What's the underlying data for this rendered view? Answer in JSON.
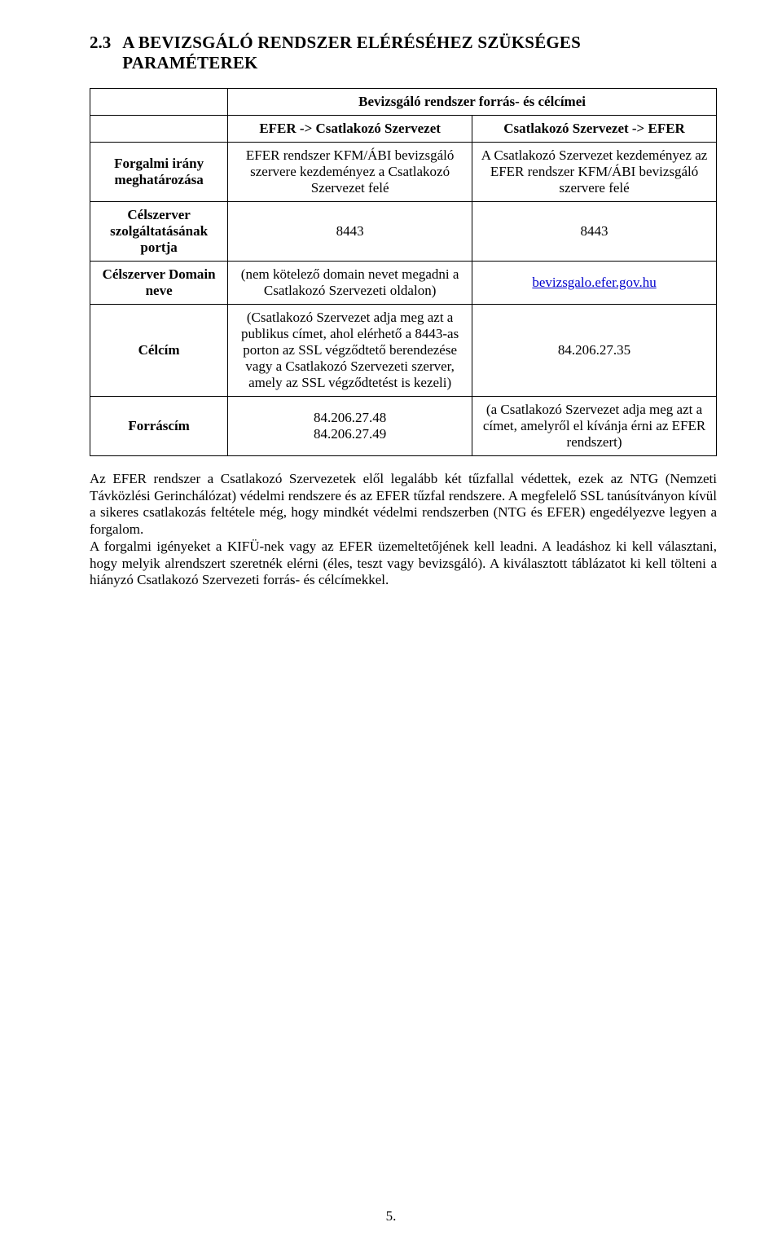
{
  "heading": {
    "number": "2.3",
    "line1": "A    BEVIZSGÁLÓ    RENDSZER    ELÉRÉSÉHEZ    SZÜKSÉGES",
    "line2": "PARAMÉTEREK"
  },
  "table": {
    "spanTitle": "Bevizsgáló rendszer forrás- és célcímei",
    "colA": "EFER -> Csatlakozó Szervezet",
    "colB": "Csatlakozó Szervezet -> EFER",
    "rows": [
      {
        "label": "Forgalmi irány meghatározása",
        "a": "EFER rendszer KFM/ÁBI bevizsgáló szervere kezdeményez a Csatlakozó Szervezet felé",
        "b": "A Csatlakozó Szervezet kezdeményez az EFER rendszer KFM/ÁBI bevizsgáló szervere felé"
      },
      {
        "label": "Célszerver szolgáltatásának portja",
        "a": "8443",
        "b": "8443"
      },
      {
        "label": "Célszerver Domain neve",
        "a": "(nem kötelező domain nevet megadni a Csatlakozó Szervezeti oldalon)",
        "b_link": "bevizsgalo.efer.gov.hu"
      },
      {
        "label": "Célcím",
        "a": "(Csatlakozó Szervezet adja meg azt a publikus címet, ahol elérhető a 8443-as porton az SSL végződtető berendezése vagy a Csatlakozó Szervezeti szerver, amely az SSL végződtetést is kezeli)",
        "b": "84.206.27.35"
      },
      {
        "label": "Forráscím",
        "a_line1": "84.206.27.48",
        "a_line2": "84.206.27.49",
        "b": "(a Csatlakozó Szervezet adja meg azt a címet, amelyről el kívánja érni az EFER rendszert)"
      }
    ]
  },
  "paragraphs": {
    "p1": "Az EFER rendszer a Csatlakozó Szervezetek elől legalább két tűzfallal védettek, ezek az NTG (Nemzeti Távközlési Gerinchálózat) védelmi rendszere és az EFER tűzfal rendszere. A megfelelő SSL tanúsítványon kívül a sikeres csatlakozás feltétele még, hogy mindkét védelmi rendszerben (NTG és EFER) engedélyezve legyen a forgalom.",
    "p2": "A forgalmi igényeket a KIFÜ-nek vagy az EFER üzemeltetőjének kell leadni. A leadáshoz ki kell választani, hogy melyik alrendszert szeretnék elérni (éles, teszt vagy bevizsgáló). A kiválasztott táblázatot ki kell tölteni a hiányzó Csatlakozó Szervezeti forrás- és célcímekkel."
  },
  "pageNumber": "5.",
  "link": {
    "href": "http://bevizsgalo.efer.gov.hu"
  }
}
